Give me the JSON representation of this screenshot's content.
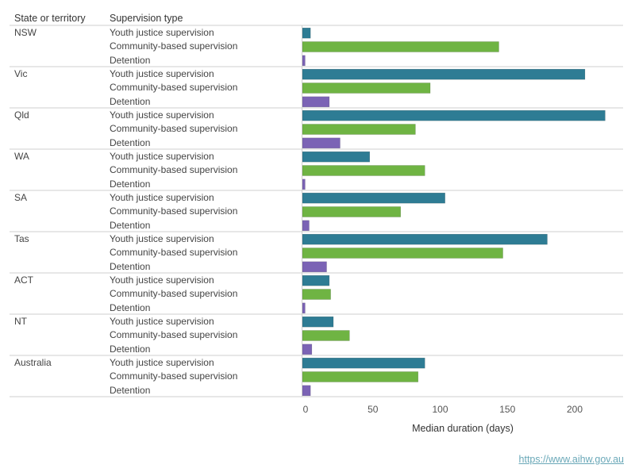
{
  "headers": {
    "state": "State or territory",
    "type": "Supervision type"
  },
  "chart_data": {
    "type": "bar",
    "orientation": "horizontal",
    "xlabel": "Median duration (days)",
    "xlim": [
      0,
      235
    ],
    "xticks": [
      0,
      50,
      100,
      150,
      200
    ],
    "series": [
      {
        "name": "Youth justice supervision",
        "color": "#2e7c94"
      },
      {
        "name": "Community-based supervision",
        "color": "#6fb443"
      },
      {
        "name": "Detention",
        "color": "#7b63b5"
      }
    ],
    "groups": [
      {
        "state": "NSW",
        "values": [
          6,
          146,
          2
        ]
      },
      {
        "state": "Vic",
        "values": [
          210,
          95,
          20
        ]
      },
      {
        "state": "Qld",
        "values": [
          225,
          84,
          28
        ]
      },
      {
        "state": "WA",
        "values": [
          50,
          91,
          2
        ]
      },
      {
        "state": "SA",
        "values": [
          106,
          73,
          5
        ]
      },
      {
        "state": "Tas",
        "values": [
          182,
          149,
          18
        ]
      },
      {
        "state": "ACT",
        "values": [
          20,
          21,
          2
        ]
      },
      {
        "state": "NT",
        "values": [
          23,
          35,
          7
        ]
      },
      {
        "state": "Australia",
        "values": [
          91,
          86,
          6
        ]
      }
    ]
  },
  "footer": {
    "link_text": "https://www.aihw.gov.au"
  }
}
